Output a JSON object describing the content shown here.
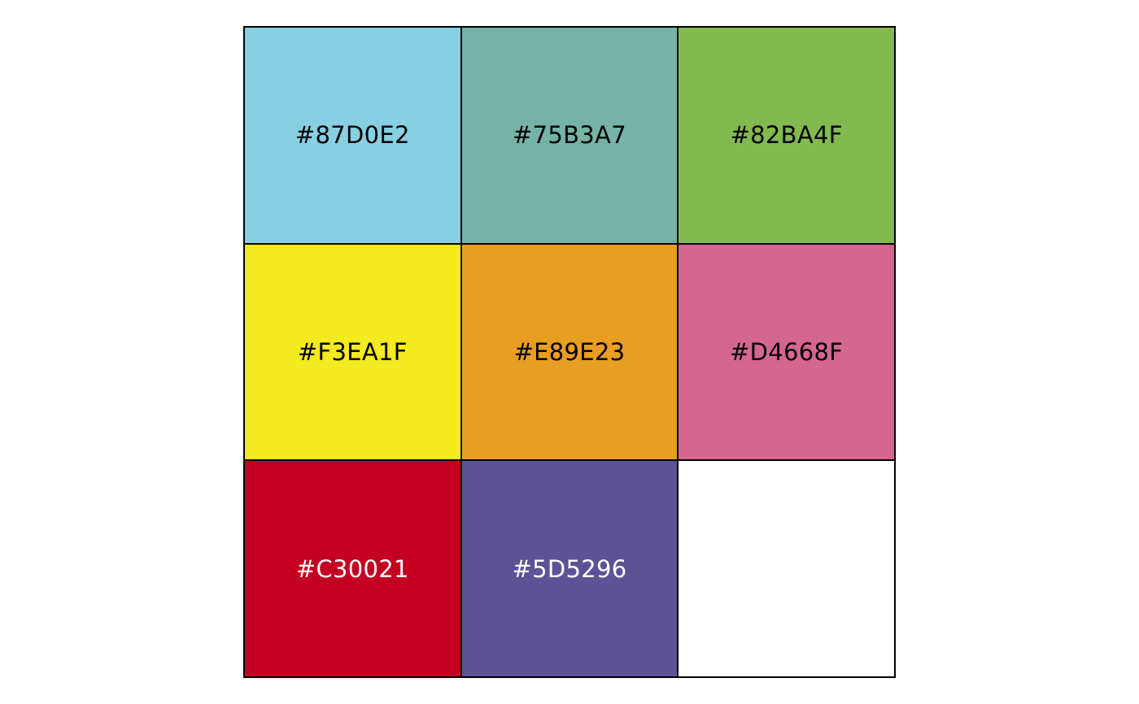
{
  "swatches": [
    {
      "label": "#87D0E2",
      "color": "#87D0E2",
      "text_color": "#000000"
    },
    {
      "label": "#75B3A7",
      "color": "#75B3A7",
      "text_color": "#000000"
    },
    {
      "label": "#82BA4F",
      "color": "#82BA4F",
      "text_color": "#000000"
    },
    {
      "label": "#F3EA1F",
      "color": "#F3EA1F",
      "text_color": "#000000"
    },
    {
      "label": "#E89E23",
      "color": "#E89E23",
      "text_color": "#000000"
    },
    {
      "label": "#D4668F",
      "color": "#D4668F",
      "text_color": "#000000"
    },
    {
      "label": "#C30021",
      "color": "#C30021",
      "text_color": "#FFFFFF"
    },
    {
      "label": "#5D5296",
      "color": "#5D5296",
      "text_color": "#FFFFFF"
    },
    {
      "label": "",
      "color": "#FFFFFF",
      "text_color": "#000000"
    }
  ]
}
